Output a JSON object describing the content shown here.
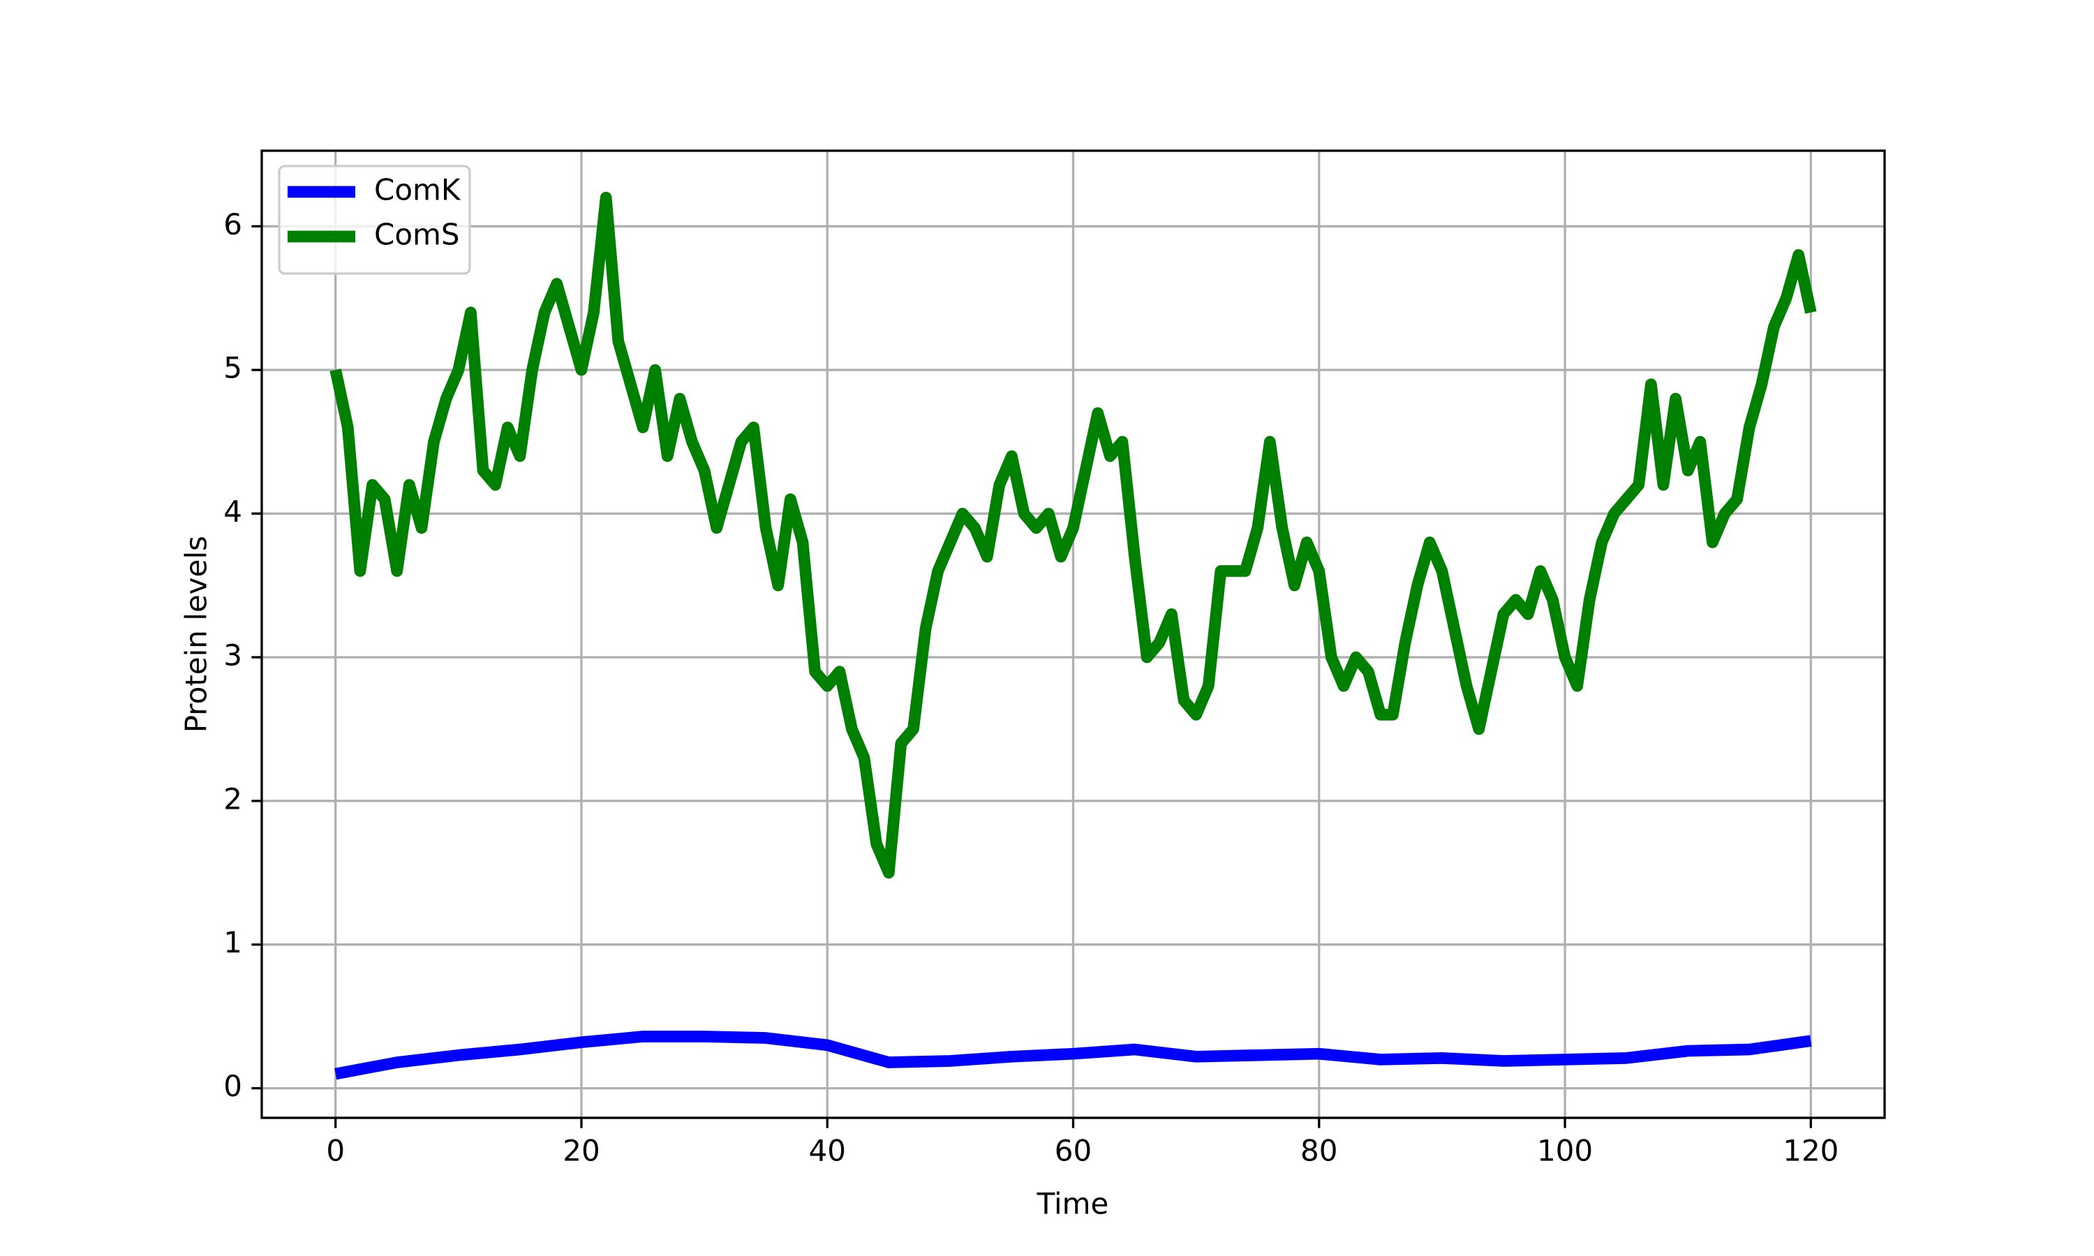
{
  "chart_data": {
    "type": "line",
    "xlabel": "Time",
    "ylabel": "Protein levels",
    "xlim": [
      -6,
      126
    ],
    "ylim": [
      -0.206,
      6.526
    ],
    "xticks": [
      0,
      20,
      40,
      60,
      80,
      100,
      120
    ],
    "yticks": [
      0,
      1,
      2,
      3,
      4,
      5,
      6
    ],
    "grid": true,
    "legend_loc": "upper left",
    "series": [
      {
        "name": "ComK",
        "color": "#0000ff",
        "x": [
          0,
          5,
          10,
          15,
          20,
          25,
          30,
          35,
          40,
          45,
          50,
          55,
          60,
          65,
          70,
          75,
          80,
          85,
          90,
          95,
          100,
          105,
          110,
          115,
          120
        ],
        "values": [
          0.1,
          0.18,
          0.23,
          0.27,
          0.32,
          0.36,
          0.36,
          0.35,
          0.3,
          0.18,
          0.19,
          0.22,
          0.24,
          0.27,
          0.22,
          0.23,
          0.24,
          0.2,
          0.21,
          0.19,
          0.2,
          0.21,
          0.26,
          0.27,
          0.33
        ]
      },
      {
        "name": "ComS",
        "color": "#008000",
        "x": [
          0,
          1,
          2,
          3,
          4,
          5,
          6,
          7,
          8,
          9,
          10,
          11,
          12,
          13,
          14,
          15,
          16,
          17,
          18,
          19,
          20,
          21,
          22,
          23,
          24,
          25,
          26,
          27,
          28,
          29,
          30,
          31,
          32,
          33,
          34,
          35,
          36,
          37,
          38,
          39,
          40,
          41,
          42,
          43,
          44,
          45,
          46,
          47,
          48,
          49,
          50,
          51,
          52,
          53,
          54,
          55,
          56,
          57,
          58,
          59,
          60,
          61,
          62,
          63,
          64,
          65,
          66,
          67,
          68,
          69,
          70,
          71,
          72,
          73,
          74,
          75,
          76,
          77,
          78,
          79,
          80,
          81,
          82,
          83,
          84,
          85,
          86,
          87,
          88,
          89,
          90,
          91,
          92,
          93,
          94,
          95,
          96,
          97,
          98,
          99,
          100,
          101,
          102,
          103,
          104,
          105,
          106,
          107,
          108,
          109,
          110,
          111,
          112,
          113,
          114,
          115,
          116,
          117,
          118,
          119,
          120
        ],
        "values": [
          5.0,
          4.6,
          3.6,
          4.2,
          4.1,
          3.6,
          4.2,
          3.9,
          4.5,
          4.8,
          5.0,
          5.4,
          4.3,
          4.2,
          4.6,
          4.4,
          5.0,
          5.4,
          5.6,
          5.3,
          5.0,
          5.4,
          6.2,
          5.2,
          4.9,
          4.6,
          5.0,
          4.4,
          4.8,
          4.5,
          4.3,
          3.9,
          4.2,
          4.5,
          4.6,
          3.9,
          3.5,
          4.1,
          3.8,
          2.9,
          2.8,
          2.9,
          2.5,
          2.3,
          1.7,
          1.5,
          2.4,
          2.5,
          3.2,
          3.6,
          3.8,
          4.0,
          3.9,
          3.7,
          4.2,
          4.4,
          4.0,
          3.9,
          4.0,
          3.7,
          3.9,
          4.3,
          4.7,
          4.4,
          4.5,
          3.7,
          3.0,
          3.1,
          3.3,
          2.7,
          2.6,
          2.8,
          3.6,
          3.6,
          3.6,
          3.9,
          4.5,
          3.9,
          3.5,
          3.8,
          3.6,
          3.0,
          2.8,
          3.0,
          2.9,
          2.6,
          2.6,
          3.1,
          3.5,
          3.8,
          3.6,
          3.2,
          2.8,
          2.5,
          2.9,
          3.3,
          3.4,
          3.3,
          3.6,
          3.4,
          3.0,
          2.8,
          3.4,
          3.8,
          4.0,
          4.1,
          4.2,
          4.9,
          4.2,
          4.8,
          4.3,
          4.5,
          3.8,
          4.0,
          4.1,
          4.6,
          4.9,
          5.3,
          5.5,
          5.8,
          5.4
        ]
      }
    ]
  }
}
